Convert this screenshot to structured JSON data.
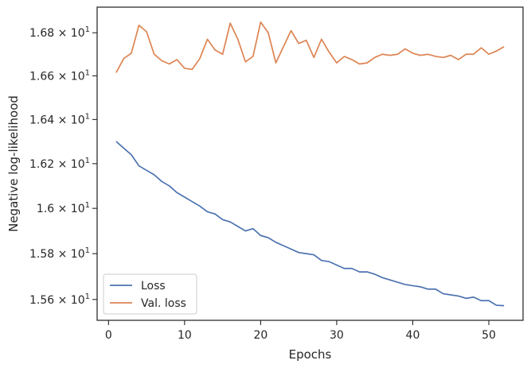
{
  "chart_data": {
    "type": "line",
    "title": "",
    "xlabel": "Epochs",
    "ylabel": "Negative log-likelihood",
    "xlim": [
      -1.5,
      54.5
    ],
    "ylim": [
      15.51,
      16.92
    ],
    "y_scale": "log",
    "grid": false,
    "legend_position": "lower-left",
    "x_ticks": [
      {
        "value": 0,
        "label": "0"
      },
      {
        "value": 10,
        "label": "10"
      },
      {
        "value": 20,
        "label": "20"
      },
      {
        "value": 30,
        "label": "30"
      },
      {
        "value": 40,
        "label": "40"
      },
      {
        "value": 50,
        "label": "50"
      }
    ],
    "y_ticks": [
      {
        "value": 15.6,
        "base": "1.56",
        "exp": "1"
      },
      {
        "value": 15.8,
        "base": "1.58",
        "exp": "1"
      },
      {
        "value": 16.0,
        "base": "1.6",
        "exp": "1"
      },
      {
        "value": 16.2,
        "base": "1.62",
        "exp": "1"
      },
      {
        "value": 16.4,
        "base": "1.64",
        "exp": "1"
      },
      {
        "value": 16.6,
        "base": "1.66",
        "exp": "1"
      },
      {
        "value": 16.8,
        "base": "1.68",
        "exp": "1"
      }
    ],
    "x": [
      1,
      2,
      3,
      4,
      5,
      6,
      7,
      8,
      9,
      10,
      11,
      12,
      13,
      14,
      15,
      16,
      17,
      18,
      19,
      20,
      21,
      22,
      23,
      24,
      25,
      26,
      27,
      28,
      29,
      30,
      31,
      32,
      33,
      34,
      35,
      36,
      37,
      38,
      39,
      40,
      41,
      42,
      43,
      44,
      45,
      46,
      47,
      48,
      49,
      50,
      51,
      52
    ],
    "series": [
      {
        "name": "Loss",
        "color": "#4c72b0",
        "values": [
          16.3,
          16.27,
          16.24,
          16.19,
          16.17,
          16.15,
          16.12,
          16.1,
          16.07,
          16.05,
          16.03,
          16.01,
          15.985,
          15.975,
          15.95,
          15.94,
          15.92,
          15.9,
          15.91,
          15.88,
          15.87,
          15.85,
          15.835,
          15.82,
          15.805,
          15.8,
          15.795,
          15.77,
          15.765,
          15.75,
          15.735,
          15.735,
          15.72,
          15.72,
          15.71,
          15.695,
          15.685,
          15.675,
          15.665,
          15.66,
          15.655,
          15.645,
          15.645,
          15.625,
          15.62,
          15.615,
          15.605,
          15.61,
          15.595,
          15.595,
          15.575,
          15.573
        ]
      },
      {
        "name": "Val. loss",
        "color": "#dd8452",
        "values": [
          16.615,
          16.68,
          16.705,
          16.835,
          16.805,
          16.7,
          16.67,
          16.655,
          16.675,
          16.635,
          16.63,
          16.68,
          16.77,
          16.72,
          16.7,
          16.845,
          16.77,
          16.665,
          16.69,
          16.85,
          16.8,
          16.66,
          16.735,
          16.81,
          16.75,
          16.765,
          16.685,
          16.77,
          16.71,
          16.66,
          16.69,
          16.675,
          16.655,
          16.66,
          16.685,
          16.7,
          16.695,
          16.7,
          16.725,
          16.705,
          16.695,
          16.7,
          16.69,
          16.685,
          16.695,
          16.675,
          16.7,
          16.7,
          16.73,
          16.7,
          16.715,
          16.735
        ]
      }
    ]
  }
}
